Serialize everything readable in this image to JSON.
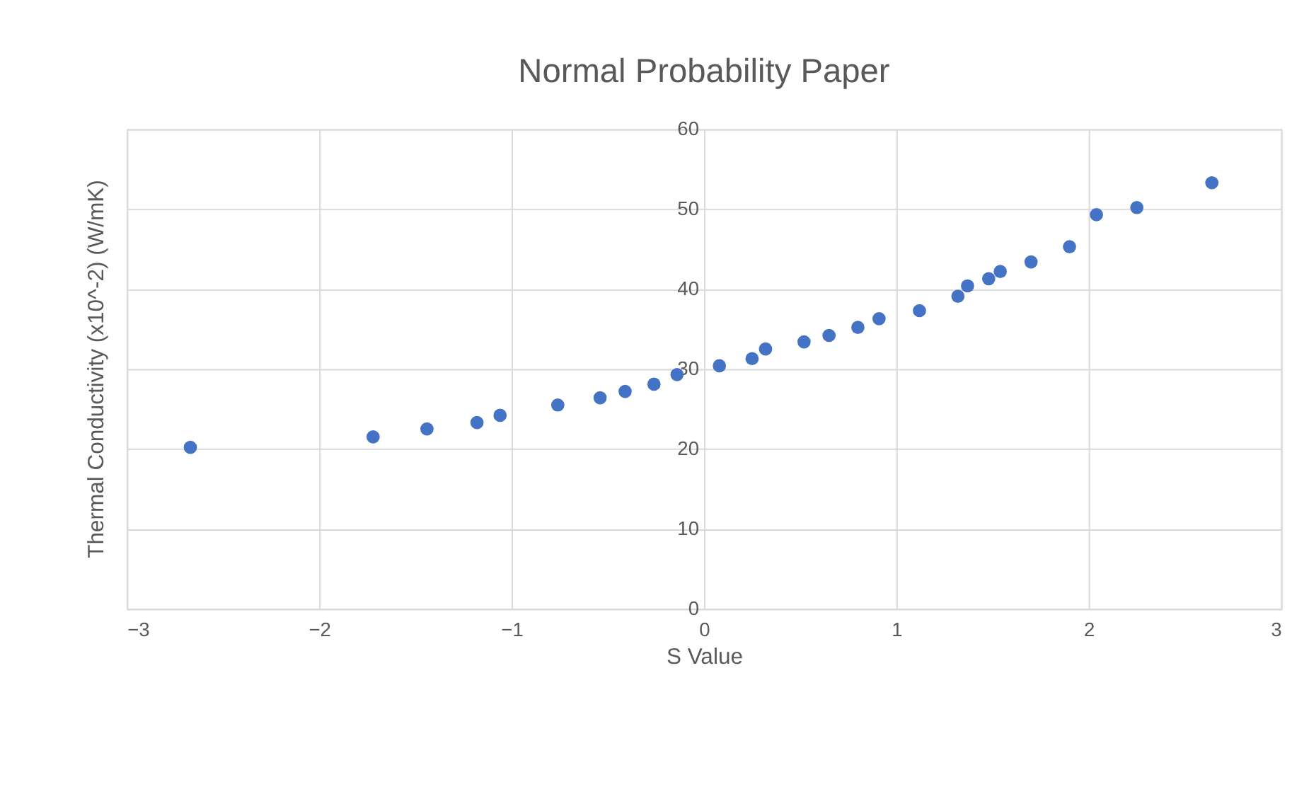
{
  "chart_data": {
    "type": "scatter",
    "title": "Normal Probability Paper",
    "xlabel": "S Value",
    "ylabel": "Thermal Conductivity (x10^-2) (W/mK)",
    "x": [
      -2.67,
      -1.72,
      -1.44,
      -1.18,
      -1.06,
      -0.76,
      -0.54,
      -0.41,
      -0.26,
      -0.14,
      0.08,
      0.25,
      0.32,
      0.52,
      0.65,
      0.8,
      0.91,
      1.12,
      1.32,
      1.37,
      1.48,
      1.54,
      1.7,
      1.9,
      2.04,
      2.25,
      2.64
    ],
    "series": [
      {
        "color": "#4472c4",
        "values": [
          20.2,
          21.5,
          22.5,
          23.3,
          24.2,
          25.5,
          26.4,
          27.2,
          28.1,
          29.3,
          30.4,
          31.3,
          32.5,
          33.4,
          34.2,
          35.2,
          36.3,
          37.3,
          39.1,
          40.4,
          41.3,
          42.2,
          43.4,
          45.3,
          49.3,
          50.2,
          53.3
        ]
      }
    ],
    "xlim": [
      -3,
      3
    ],
    "xticks": [
      -3,
      -2,
      -1,
      0,
      1,
      2,
      3
    ],
    "ylim": [
      0,
      60
    ],
    "yticks": [
      0,
      10,
      20,
      30,
      40,
      50,
      60
    ],
    "grid": true,
    "marker": "circle"
  }
}
